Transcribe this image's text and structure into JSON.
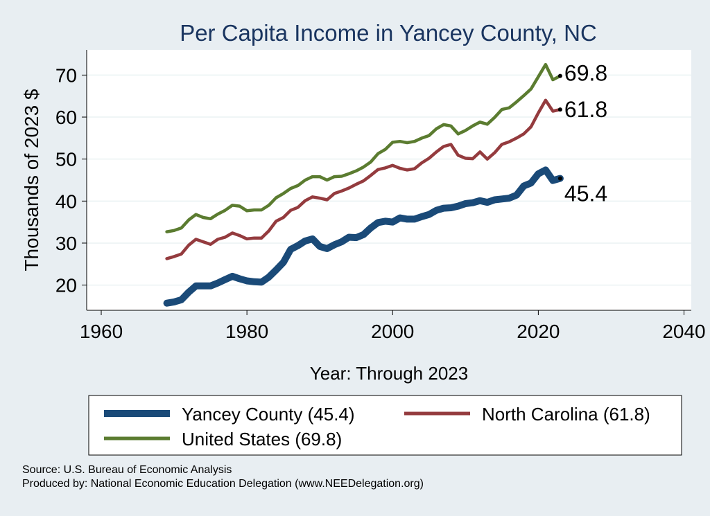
{
  "title": "Per Capita Income in Yancey County, NC",
  "source_lines": [
    "Source: U.S. Bureau of Economic Analysis",
    "Produced by: National Economic Education Delegation (www.NEEDelegation.org)"
  ],
  "colors": {
    "background": "#e8eef2",
    "plot_background": "#ffffff",
    "title": "#1a3560",
    "yancey": "#1a4a78",
    "north_carolina": "#943b3e",
    "united_states": "#5b7c30"
  },
  "chart_data": {
    "type": "line",
    "title": "Per Capita Income in Yancey County, NC",
    "xlabel": "Year: Through 2023",
    "ylabel": "Thousands of 2023 $",
    "xlim": [
      1958,
      2041
    ],
    "ylim": [
      14,
      76
    ],
    "x_ticks": [
      1960,
      1980,
      2000,
      2020,
      2040
    ],
    "y_ticks": [
      20,
      30,
      40,
      50,
      60,
      70
    ],
    "grid": true,
    "legend_position": "bottom",
    "x": [
      1969,
      1970,
      1971,
      1972,
      1973,
      1974,
      1975,
      1976,
      1977,
      1978,
      1979,
      1980,
      1981,
      1982,
      1983,
      1984,
      1985,
      1986,
      1987,
      1988,
      1989,
      1990,
      1991,
      1992,
      1993,
      1994,
      1995,
      1996,
      1997,
      1998,
      1999,
      2000,
      2001,
      2002,
      2003,
      2004,
      2005,
      2006,
      2007,
      2008,
      2009,
      2010,
      2011,
      2012,
      2013,
      2014,
      2015,
      2016,
      2017,
      2018,
      2019,
      2020,
      2021,
      2022,
      2023
    ],
    "series": [
      {
        "name": "Yancey County (45.4)",
        "color": "#1a4a78",
        "end_label": "45.4",
        "values": [
          15.7,
          16.0,
          16.5,
          18.3,
          19.8,
          19.8,
          19.8,
          20.5,
          21.3,
          22.1,
          21.5,
          21.0,
          20.8,
          20.7,
          21.9,
          23.6,
          25.4,
          28.5,
          29.4,
          30.5,
          31.0,
          29.2,
          28.7,
          29.6,
          30.3,
          31.4,
          31.3,
          32.0,
          33.6,
          34.9,
          35.2,
          35.0,
          36.0,
          35.7,
          35.7,
          36.3,
          36.8,
          37.8,
          38.3,
          38.4,
          38.8,
          39.4,
          39.6,
          40.1,
          39.7,
          40.3,
          40.5,
          40.7,
          41.4,
          43.6,
          44.3,
          46.5,
          47.4,
          44.9,
          45.4
        ]
      },
      {
        "name": "North Carolina (61.8)",
        "color": "#943b3e",
        "end_label": "61.8",
        "values": [
          26.3,
          26.8,
          27.4,
          29.5,
          30.9,
          30.3,
          29.7,
          30.9,
          31.4,
          32.4,
          31.8,
          31.0,
          31.2,
          31.2,
          32.9,
          35.2,
          36.1,
          37.8,
          38.5,
          40.1,
          41.0,
          40.7,
          40.3,
          41.8,
          42.4,
          43.1,
          44.0,
          44.8,
          46.1,
          47.5,
          47.9,
          48.5,
          47.8,
          47.4,
          47.7,
          49.1,
          50.2,
          51.7,
          53.0,
          53.5,
          50.9,
          50.2,
          50.1,
          51.7,
          50.0,
          51.5,
          53.5,
          54.1,
          55.0,
          56.0,
          57.7,
          61.0,
          64.0,
          61.4,
          61.8
        ]
      },
      {
        "name": "United States (69.8)",
        "color": "#5b7c30",
        "end_label": "69.8",
        "values": [
          32.7,
          33.0,
          33.6,
          35.5,
          36.8,
          36.1,
          35.8,
          36.9,
          37.8,
          39.0,
          38.8,
          37.7,
          37.9,
          37.9,
          39.0,
          40.8,
          41.8,
          43.0,
          43.7,
          45.0,
          45.8,
          45.8,
          45.0,
          45.8,
          45.9,
          46.5,
          47.2,
          48.1,
          49.3,
          51.3,
          52.3,
          54.0,
          54.2,
          53.9,
          54.2,
          55.0,
          55.6,
          57.2,
          58.2,
          57.9,
          56.0,
          56.8,
          57.9,
          58.8,
          58.3,
          59.9,
          61.8,
          62.2,
          63.6,
          65.1,
          66.7,
          69.6,
          72.5,
          68.9,
          69.8
        ]
      }
    ]
  }
}
